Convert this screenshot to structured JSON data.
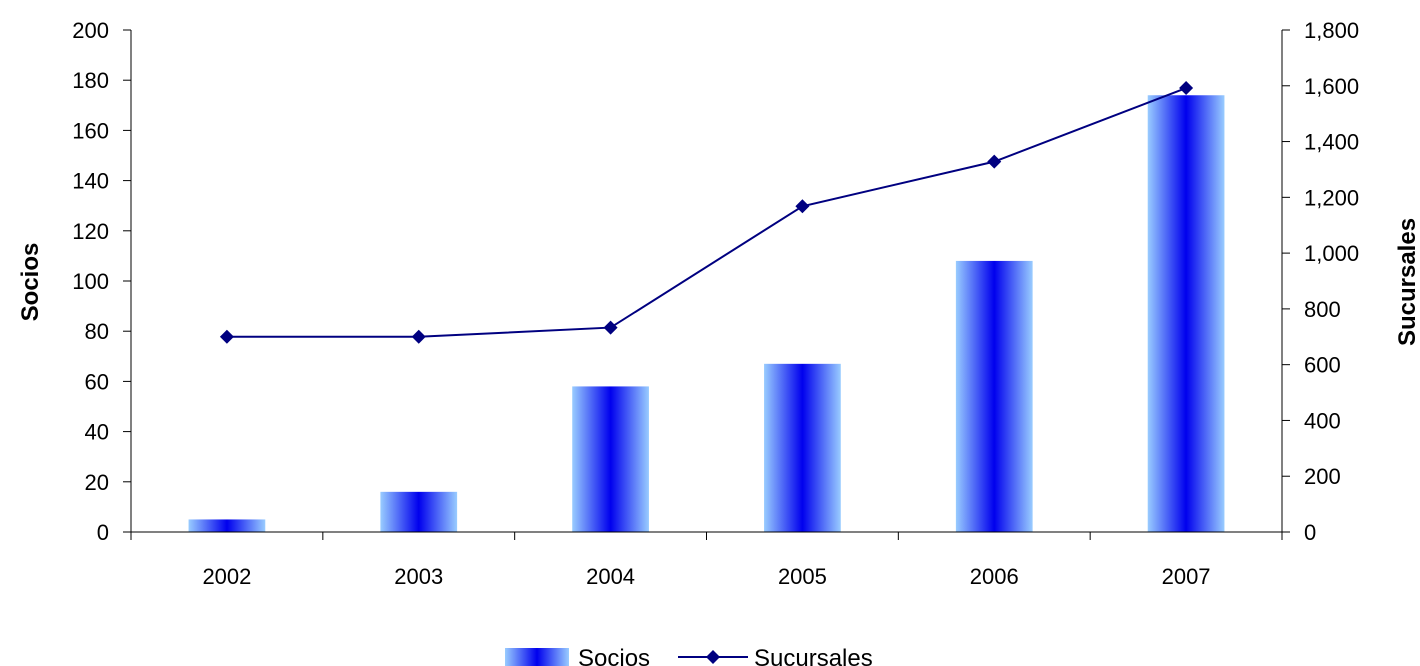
{
  "chart_data": {
    "type": "bar",
    "categories": [
      "2002",
      "2003",
      "2004",
      "2005",
      "2006",
      "2007"
    ],
    "series": [
      {
        "name": "Socios",
        "type": "bar",
        "axis": "left",
        "values": [
          5,
          16,
          58,
          67,
          108,
          174
        ]
      },
      {
        "name": "Sucursales",
        "type": "line",
        "axis": "right",
        "values": [
          700,
          700,
          733,
          1168,
          1328,
          1592
        ]
      }
    ],
    "ylabel": "Socios",
    "y2label": "Sucursales",
    "ylim": [
      0,
      200
    ],
    "y2lim": [
      0,
      1800
    ],
    "yticks": [
      "0",
      "20",
      "40",
      "60",
      "80",
      "100",
      "120",
      "140",
      "160",
      "180",
      "200"
    ],
    "y2ticks": [
      "0",
      "200",
      "400",
      "600",
      "800",
      "1,000",
      "1,200",
      "1,400",
      "1,600",
      "1,800"
    ],
    "grid": false,
    "legend": "bottom",
    "colors": {
      "bar_edge": "#99ccff",
      "bar_center": "#0000ee",
      "line": "#000080"
    }
  }
}
